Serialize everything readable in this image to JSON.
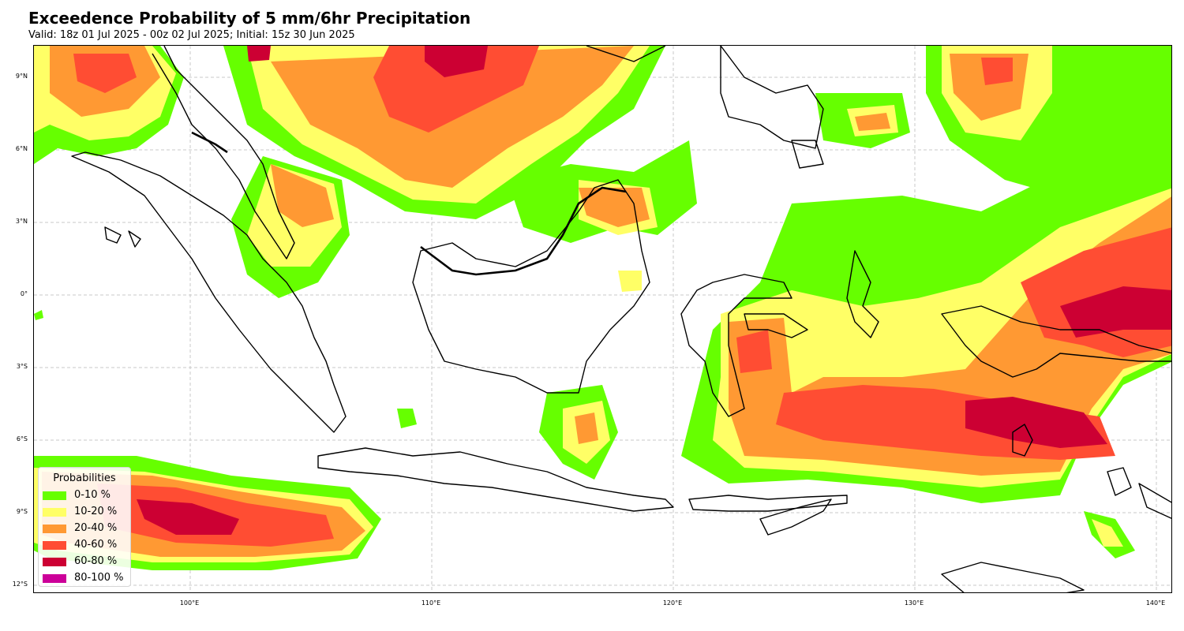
{
  "title": "Exceedence Probability of 5 mm/6hr Precipitation",
  "subtitle": "Valid: 18z 01 Jul 2025 - 00z 02 Jul 2025; Initial: 15z 30 Jun 2025",
  "map": {
    "lat_labels": [
      "9°N",
      "6°N",
      "3°N",
      "0°",
      "3°S",
      "6°S",
      "9°S",
      "12°S"
    ],
    "lon_labels": [
      "100°E",
      "110°E",
      "120°E",
      "130°E",
      "140°E"
    ],
    "extent": {
      "lon": [
        93.6,
        140.8
      ],
      "lat": [
        -12.3,
        10.4
      ]
    },
    "gridlines": true
  },
  "legend": {
    "title": "Probabilities",
    "items": [
      {
        "label": "0-10 %",
        "color": "#66ff00"
      },
      {
        "label": "10-20 %",
        "color": "#ffff66"
      },
      {
        "label": "20-40 %",
        "color": "#ff9933"
      },
      {
        "label": "40-60 %",
        "color": "#ff4d33"
      },
      {
        "label": "60-80 %",
        "color": "#cc0033"
      },
      {
        "label": "80-100 %",
        "color": "#cc0099"
      }
    ]
  }
}
